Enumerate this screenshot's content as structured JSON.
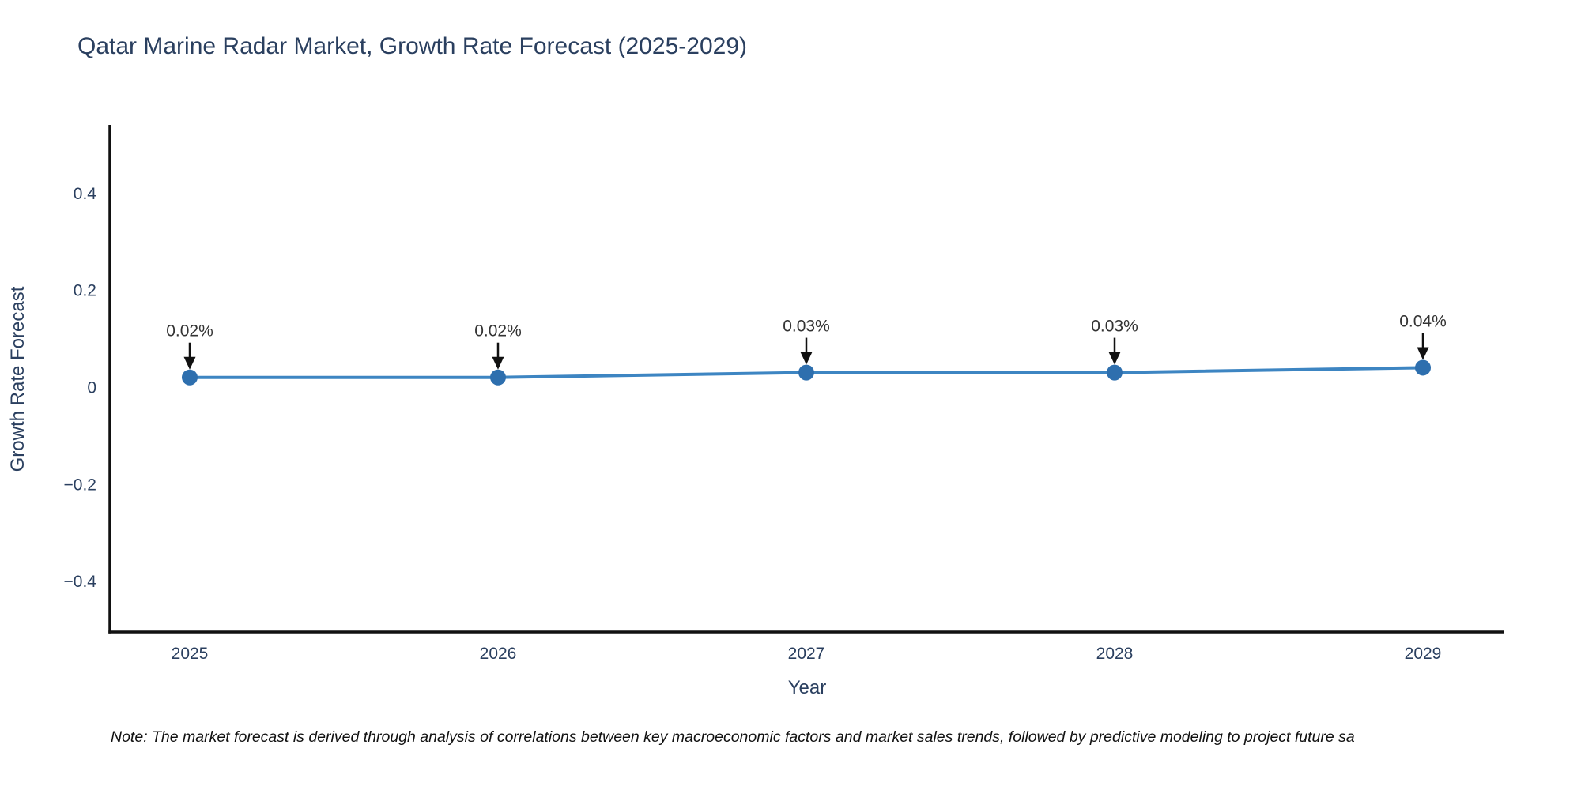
{
  "page": {
    "background_color": "#ffffff"
  },
  "chart_data": {
    "type": "line",
    "title": "Qatar Marine Radar Market, Growth Rate Forecast (2025-2029)",
    "xlabel": "Year",
    "ylabel": "Growth Rate Forecast",
    "x": [
      2025,
      2026,
      2027,
      2028,
      2029
    ],
    "series": [
      {
        "name": "Growth Rate Forecast",
        "values": [
          0.02,
          0.02,
          0.03,
          0.03,
          0.04
        ],
        "point_labels": [
          "0.02%",
          "0.02%",
          "0.03%",
          "0.03%",
          "0.04%"
        ]
      }
    ],
    "y_ticks": [
      0.4,
      0.2,
      0,
      -0.2,
      -0.4
    ],
    "ylim": [
      -0.52,
      0.54
    ],
    "grid": false,
    "legend": false,
    "annotations_have_arrows": true,
    "colors": {
      "line": "#3d85c2",
      "marker": "#2e6fae",
      "axis_line": "#111111",
      "axis_text": "#2a3f5f",
      "title_text": "#2a3f5f",
      "annotation_text": "#333333",
      "arrow": "#111111"
    }
  },
  "note": {
    "text": "Note: The market forecast is derived through analysis of correlations between key macroeconomic factors and market sales trends, followed by predictive modeling to project future sa"
  }
}
